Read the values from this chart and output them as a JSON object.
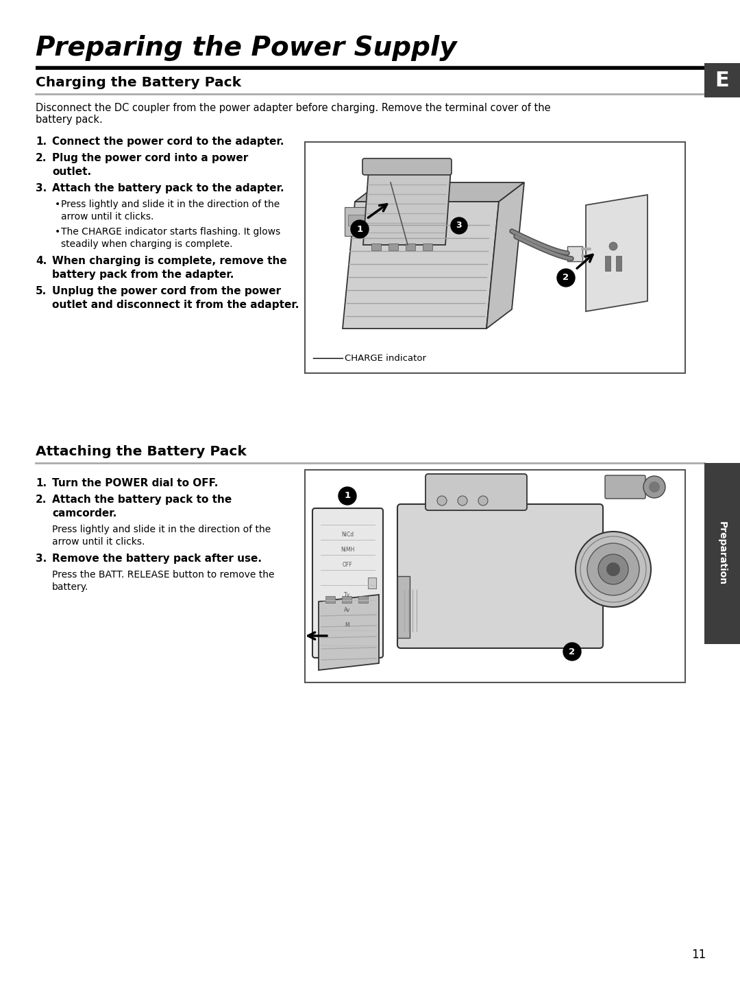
{
  "page_title": "Preparing the Power Supply",
  "section1_title": "Charging the Battery Pack",
  "section1_intro_l1": "Disconnect the DC coupler from the power adapter before charging. Remove the terminal cover of the",
  "section1_intro_l2": "battery pack.",
  "section2_title": "Attaching the Battery Pack",
  "sidebar_letter": "E",
  "sidebar_text": "Preparation",
  "page_number": "11",
  "charge_indicator_label": "CHARGE indicator",
  "bg_color": "#ffffff",
  "sidebar_bg": "#3d3d3d",
  "title_line_color": "#000000",
  "section_line_color": "#aaaaaa"
}
